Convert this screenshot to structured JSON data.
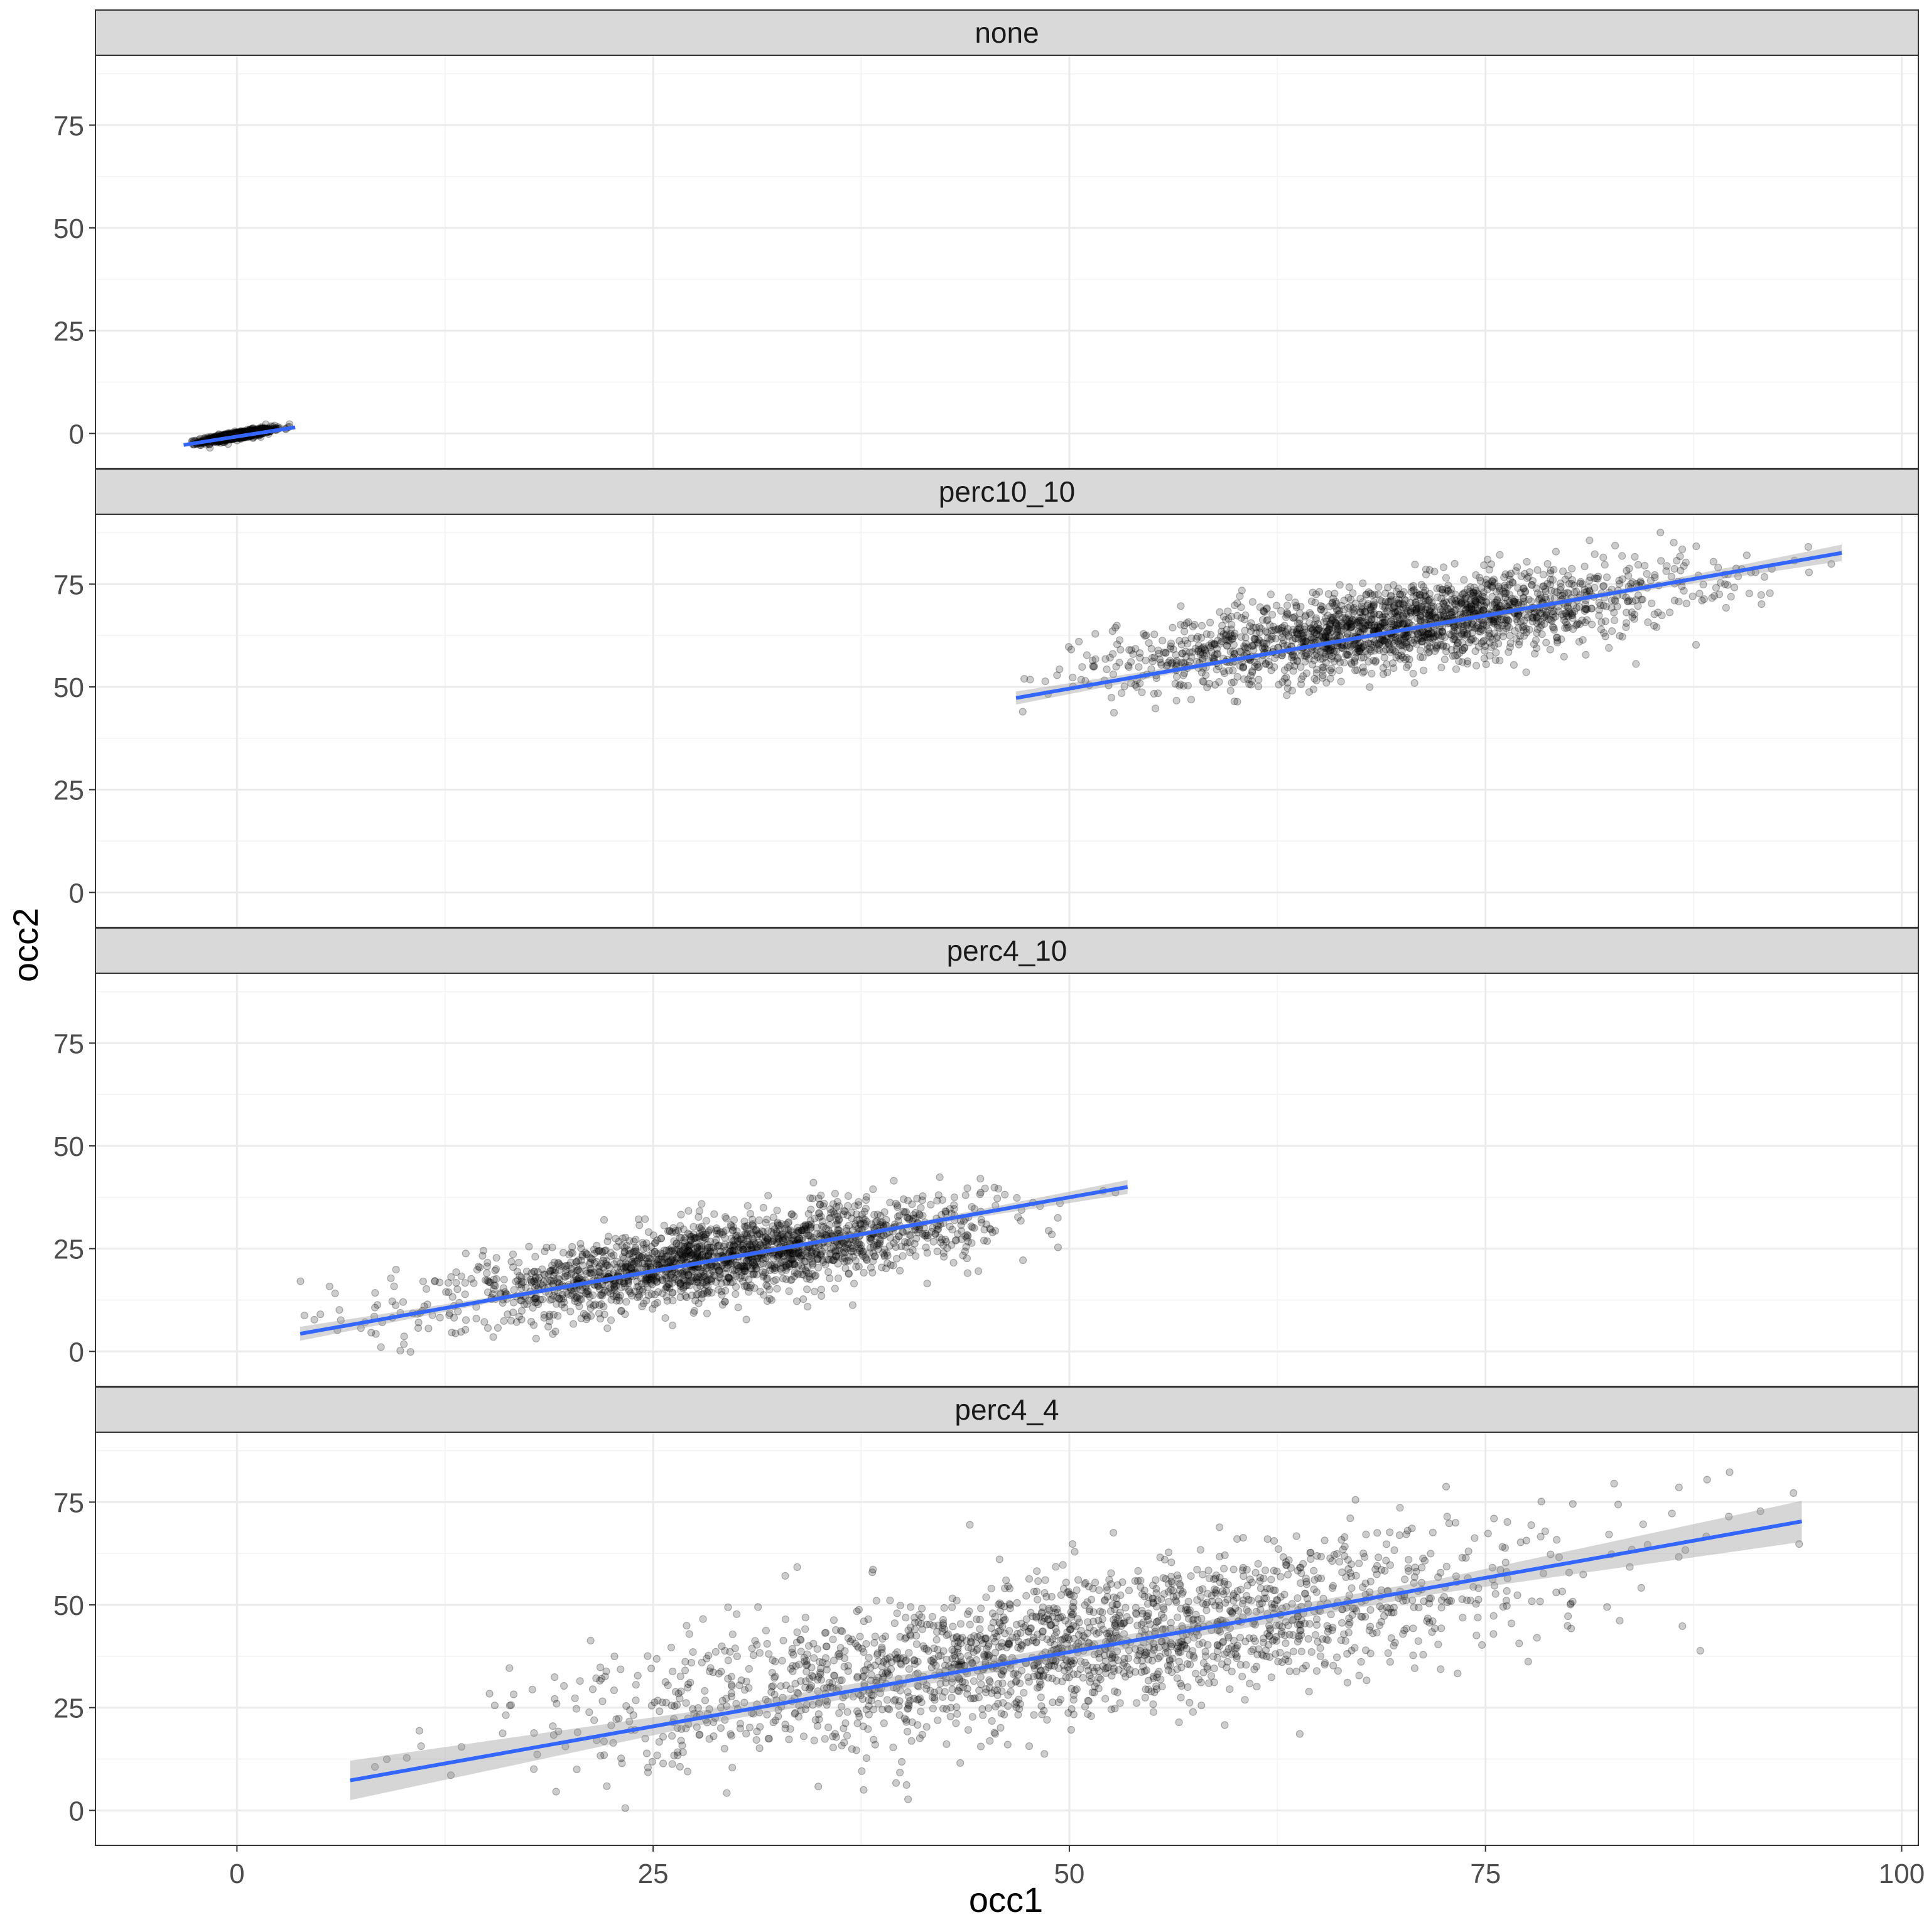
{
  "chart_data": {
    "type": "scatter",
    "title": "",
    "xlabel": "occ1",
    "ylabel": "occ2",
    "xlim": [
      -8.5,
      101
    ],
    "ylim": [
      -8.5,
      92
    ],
    "x_ticks": [
      0,
      25,
      50,
      75,
      100
    ],
    "y_ticks": [
      0,
      25,
      50,
      75
    ],
    "x_tick_labels": [
      "0",
      "25",
      "50",
      "75",
      "100"
    ],
    "y_tick_labels": [
      "0",
      "25",
      "50",
      "75"
    ],
    "grid": true,
    "legend": "none",
    "point_color": "#000000",
    "point_opacity": 0.2,
    "fit_color": "#3366FF",
    "ribbon_color": "#999999",
    "strip_fill": "#D9D9D9",
    "panels": [
      {
        "label": "none",
        "cloud": {
          "cx": 0,
          "cy": -0.5,
          "sx": 1.05,
          "sy": 0.85,
          "rho": 0.85,
          "n": 900,
          "xmin": -3.7,
          "xmax": 3.5
        },
        "fit": {
          "x0": -3.2,
          "x1": 3.5,
          "y0": -2.8,
          "y1": 1.5,
          "se0": 0.35,
          "se1": 0.35
        }
      },
      {
        "label": "perc10_10",
        "cloud": {
          "cx": 70,
          "cy": 65,
          "sx": 8.5,
          "sy": 6.8,
          "rho": 0.68,
          "n": 2000,
          "xmin": 47,
          "xmax": 96.5
        },
        "fit": {
          "x0": 46.8,
          "x1": 96.4,
          "y0": 47.3,
          "y1": 82.6,
          "se0": 1.6,
          "se1": 2.0
        }
      },
      {
        "label": "perc4_10",
        "cloud": {
          "cx": 29,
          "cy": 22.5,
          "sx": 7.8,
          "sy": 6.6,
          "rho": 0.72,
          "n": 2000,
          "xmin": 3.8,
          "xmax": 53.5
        },
        "fit": {
          "x0": 3.8,
          "x1": 53.5,
          "y0": 4.3,
          "y1": 40.0,
          "se0": 1.7,
          "se1": 1.7
        }
      },
      {
        "label": "perc4_4",
        "cloud": {
          "cx": 50,
          "cy": 40,
          "sx": 14,
          "sy": 12.5,
          "rho": 0.71,
          "n": 2000,
          "xmin": 6.8,
          "xmax": 94
        },
        "fit": {
          "x0": 6.8,
          "x1": 94,
          "y0": 7.3,
          "y1": 70.3,
          "se0": 4.8,
          "se1": 5.0
        }
      }
    ]
  }
}
